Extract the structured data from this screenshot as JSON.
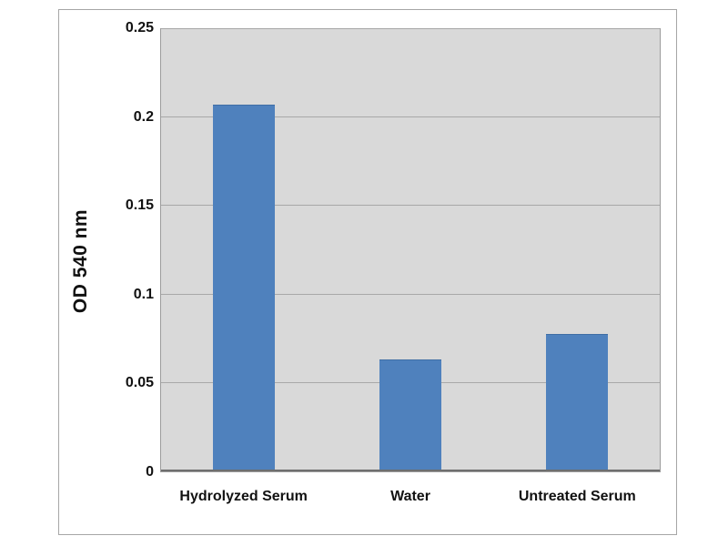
{
  "chart_data": {
    "type": "bar",
    "title": "",
    "categories": [
      "Hydrolyzed Serum",
      "Water",
      "Untreated Serum"
    ],
    "values": [
      0.207,
      0.063,
      0.077
    ],
    "xlabel": "",
    "ylabel": "OD 540 nm",
    "ylim": [
      0,
      0.25
    ],
    "yticks": [
      0,
      0.05,
      0.1,
      0.15,
      0.2,
      0.25
    ],
    "ytick_labels": [
      "0",
      "0.05",
      "0.1",
      "0.15",
      "0.2",
      "0.25"
    ],
    "grid": true,
    "legend_position": "none",
    "bar_color": "#4f81bd",
    "plot_background": "#d9d9d9",
    "frame_border_color": "#a6a6a6"
  }
}
